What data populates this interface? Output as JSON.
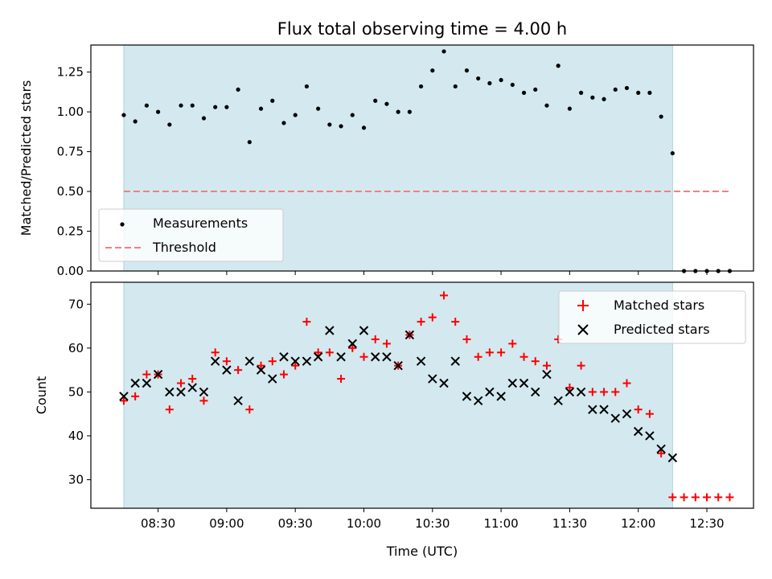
{
  "chart_data": [
    {
      "type": "scatter",
      "title": "Flux total observing time = 4.00 h",
      "ylabel": "Matched/Predicted stars",
      "xlabel": "",
      "ylim": [
        0.0,
        1.42
      ],
      "x_range_minutes": [
        8.01,
        12.84
      ],
      "y_ticks": [
        0.0,
        0.25,
        0.5,
        0.75,
        1.0,
        1.25
      ],
      "y_tick_labels": [
        "0.00",
        "0.25",
        "0.50",
        "0.75",
        "1.00",
        "1.25"
      ],
      "shaded_interval_hours": [
        8.25,
        12.25
      ],
      "shade_color": "#d3e9ef",
      "legend_position": "lower-left",
      "series": [
        {
          "name": "Measurements",
          "marker": "dot",
          "color": "#000000",
          "x_start_hour": 8.25,
          "x_step_minutes": 5,
          "values": [
            0.98,
            0.94,
            1.04,
            1.0,
            0.92,
            1.04,
            1.04,
            0.96,
            1.03,
            1.03,
            1.14,
            0.81,
            1.02,
            1.07,
            0.93,
            0.98,
            1.16,
            1.02,
            0.92,
            0.91,
            0.98,
            0.9,
            1.07,
            1.05,
            1.0,
            1.0,
            1.16,
            1.26,
            1.38,
            1.16,
            1.26,
            1.21,
            1.18,
            1.2,
            1.17,
            1.12,
            1.14,
            1.04,
            1.29,
            1.02,
            1.12,
            1.09,
            1.08,
            1.14,
            1.15,
            1.12,
            1.12,
            0.97,
            0.74,
            0.0,
            0.0,
            0.0,
            0.0,
            0.0
          ]
        },
        {
          "name": "Threshold",
          "style": "dashed",
          "color": "#f08080",
          "y": 0.5,
          "x_from_hour": 8.25,
          "x_to_hour": 12.67
        }
      ]
    },
    {
      "type": "scatter",
      "title": "",
      "xlabel": "Time (UTC)",
      "ylabel": "Count",
      "ylim": [
        23.5,
        75
      ],
      "x_range_minutes": [
        8.01,
        12.84
      ],
      "x_tick_hours": [
        8.5,
        9.0,
        9.5,
        10.0,
        10.5,
        11.0,
        11.5,
        12.0,
        12.5
      ],
      "x_tick_labels": [
        "08:30",
        "09:00",
        "09:30",
        "10:00",
        "10:30",
        "11:00",
        "11:30",
        "12:00",
        "12:30"
      ],
      "y_ticks": [
        30,
        40,
        50,
        60,
        70
      ],
      "y_tick_labels": [
        "30",
        "40",
        "50",
        "60",
        "70"
      ],
      "shaded_interval_hours": [
        8.25,
        12.25
      ],
      "shade_color": "#d3e9ef",
      "legend_position": "upper-right",
      "series": [
        {
          "name": "Matched stars",
          "marker": "plus",
          "color": "#ff0000",
          "x_start_hour": 8.25,
          "x_step_minutes": 5,
          "values": [
            48,
            49,
            54,
            54,
            46,
            52,
            53,
            48,
            59,
            57,
            55,
            46,
            56,
            57,
            54,
            56,
            66,
            59,
            59,
            53,
            60,
            58,
            62,
            61,
            56,
            63,
            66,
            67,
            72,
            66,
            62,
            58,
            59,
            59,
            61,
            58,
            57,
            56,
            62,
            51,
            56,
            50,
            50,
            50,
            52,
            46,
            45,
            36,
            26,
            26,
            26,
            26,
            26,
            26
          ]
        },
        {
          "name": "Predicted stars",
          "marker": "x",
          "color": "#000000",
          "x_start_hour": 8.25,
          "x_step_minutes": 5,
          "values": [
            49,
            52,
            52,
            54,
            50,
            50,
            51,
            50,
            57,
            55,
            48,
            57,
            55,
            53,
            58,
            57,
            57,
            58,
            64,
            58,
            61,
            64,
            58,
            58,
            56,
            63,
            57,
            53,
            52,
            57,
            49,
            48,
            50,
            49,
            52,
            52,
            50,
            54,
            48,
            50,
            50,
            46,
            46,
            44,
            45,
            41,
            40,
            37,
            35
          ]
        }
      ]
    }
  ]
}
